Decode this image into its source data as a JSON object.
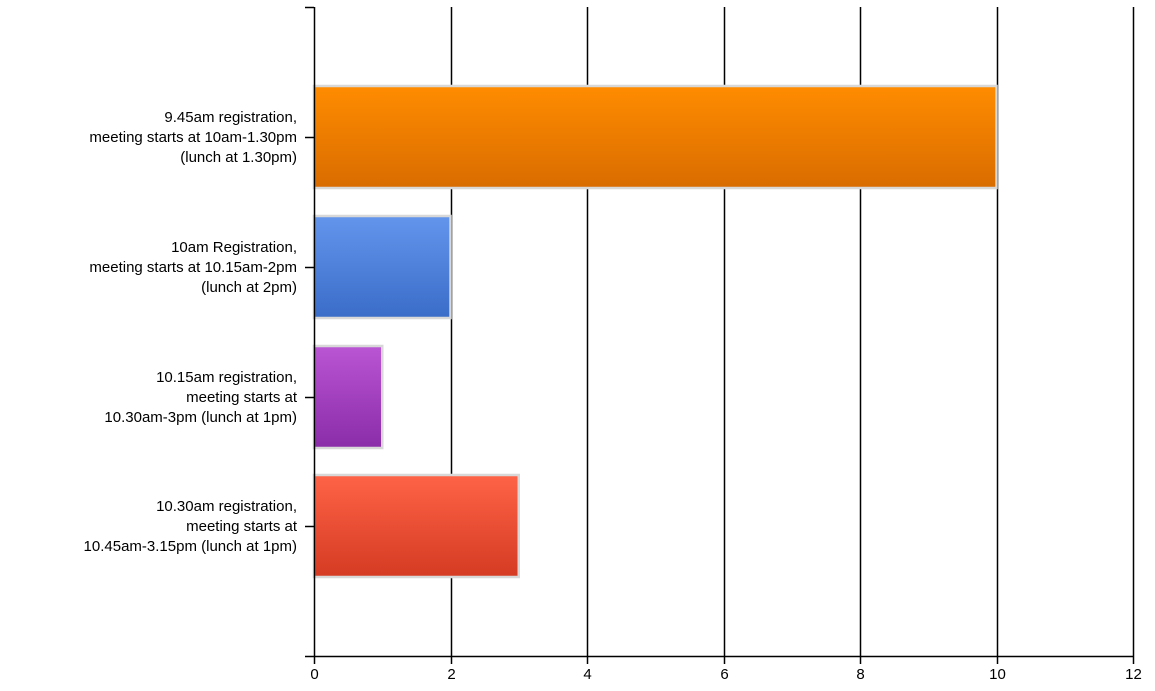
{
  "chart_data": {
    "type": "bar",
    "orientation": "horizontal",
    "title": "",
    "xlabel": "",
    "ylabel": "",
    "xlim": [
      0,
      12
    ],
    "x_ticks": [
      0,
      2,
      4,
      6,
      8,
      10,
      12
    ],
    "grid": "vertical",
    "legend": "none",
    "categories": [
      [
        "9.45am registration,",
        "meeting starts at 10am-1.30pm",
        "(lunch at 1.30pm)"
      ],
      [
        "10am Registration,",
        "meeting starts at 10.15am-2pm",
        "(lunch at 2pm)"
      ],
      [
        "10.15am registration,",
        "meeting starts at",
        "10.30am-3pm (lunch at 1pm)"
      ],
      [
        "10.30am registration,",
        "meeting starts at",
        "10.45am-3.15pm (lunch at 1pm)"
      ]
    ],
    "values": [
      10,
      2,
      1,
      3
    ],
    "colors": [
      [
        "#ff8c00",
        "#d96c00"
      ],
      [
        "#6495ed",
        "#3a6dc8"
      ],
      [
        "#ba55d3",
        "#8a2ca8"
      ],
      [
        "#ff6347",
        "#d43b22"
      ]
    ]
  }
}
